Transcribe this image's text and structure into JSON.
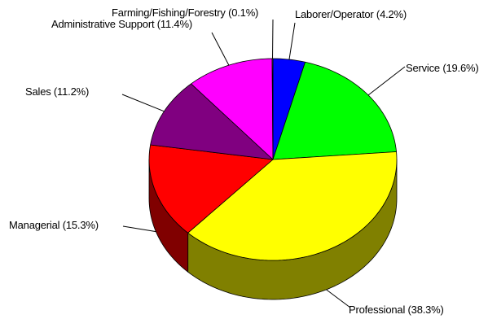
{
  "chart_data": {
    "type": "pie",
    "style": "3d",
    "title": "",
    "slices": [
      {
        "label": "Laborer/Operator (4.2%)",
        "value": 4.2,
        "color": "#0000ff"
      },
      {
        "label": "Service (19.6%)",
        "value": 19.6,
        "color": "#00ff00"
      },
      {
        "label": "Professional (38.3%)",
        "value": 38.3,
        "color": "#ffff00"
      },
      {
        "label": "Managerial (15.3%)",
        "value": 15.3,
        "color": "#ff0000"
      },
      {
        "label": "Sales (11.2%)",
        "value": 11.2,
        "color": "#800080"
      },
      {
        "label": "Administrative Support (11.4%)",
        "value": 11.4,
        "color": "#ff00ff"
      },
      {
        "label": "Farming/Fishing/Forestry (0.1%)",
        "value": 0.1,
        "color": "#ffffff"
      }
    ]
  }
}
